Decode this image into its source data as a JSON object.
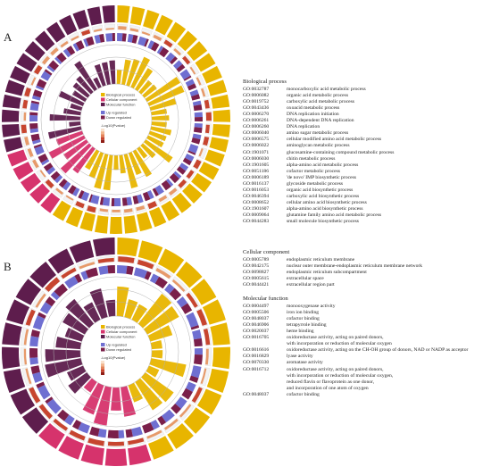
{
  "panels": [
    {
      "letter": "A",
      "chart_data": {
        "type": "circular",
        "legend": {
          "categories": [
            {
              "label": "Biological process",
              "color": "#e8b500"
            },
            {
              "label": "Cellular component",
              "color": "#d6336c"
            },
            {
              "label": "Molecular function",
              "color": "#5e1d4d"
            }
          ],
          "regulation": [
            {
              "label": "Up regulated",
              "color": "#6f6fd1"
            },
            {
              "label": "Down regulated",
              "color": "#7a1f4a"
            }
          ],
          "gradient_label": "-Log10(Pvalue)"
        },
        "sectors": [
          {
            "category": "Biological process",
            "count": 28
          },
          {
            "category": "Cellular component",
            "count": 5
          },
          {
            "category": "Molecular function",
            "count": 14
          }
        ]
      }
    },
    {
      "letter": "B",
      "chart_data": {
        "type": "circular",
        "legend": {
          "categories": [
            {
              "label": "Biological process",
              "color": "#e8b500"
            },
            {
              "label": "Cellular component",
              "color": "#d6336c"
            },
            {
              "label": "Molecular function",
              "color": "#5e1d4d"
            }
          ],
          "regulation": [
            {
              "label": "Up regulated",
              "color": "#6f6fd1"
            },
            {
              "label": "Down regulated",
              "color": "#7a1f4a"
            }
          ],
          "gradient_label": "-Log10(Pvalue)"
        },
        "sectors": [
          {
            "category": "Biological process",
            "count": 13
          },
          {
            "category": "Cellular component",
            "count": 5
          },
          {
            "category": "Molecular function",
            "count": 11
          }
        ]
      }
    }
  ],
  "lists": [
    {
      "heading": "Biological process",
      "items": [
        {
          "id": "GO:0032787",
          "term": "monocarboxylic acid metabolic process"
        },
        {
          "id": "GO:0006082",
          "term": "organic acid metabolic process"
        },
        {
          "id": "GO:0019752",
          "term": "carboxylic acid metabolic process"
        },
        {
          "id": "GO:0043436",
          "term": "oxoacid metabolic process"
        },
        {
          "id": "GO:0006270",
          "term": "DNA replication initiation"
        },
        {
          "id": "GO:0006261",
          "term": "DNA-dependent DNA replication"
        },
        {
          "id": "GO:0006260",
          "term": "DNA replication"
        },
        {
          "id": "GO:0006040",
          "term": "amino sugar metabolic process"
        },
        {
          "id": "GO:0006575",
          "term": "cellular modified amino acid metabolic process"
        },
        {
          "id": "GO:0006022",
          "term": "aminoglycan metabolic process"
        },
        {
          "id": "GO:1901071",
          "term": "glucosamine-containing compound metabolic process"
        },
        {
          "id": "GO:0006030",
          "term": "chitin metabolic process"
        },
        {
          "id": "GO:1901605",
          "term": "alpha-amino acid metabolic process"
        },
        {
          "id": "GO:0051186",
          "term": "cofactor metabolic process"
        },
        {
          "id": "GO:0006189",
          "term": "'de novo' IMP biosynthetic process"
        },
        {
          "id": "GO:0016137",
          "term": "glycoside metabolic process"
        },
        {
          "id": "GO:0016053",
          "term": "organic acid biosynthetic process"
        },
        {
          "id": "GO:0046394",
          "term": "carboxylic acid biosynthetic process"
        },
        {
          "id": "GO:0008652",
          "term": "cellular amino acid biosynthetic process"
        },
        {
          "id": "GO:1901607",
          "term": "alpha-amino acid biosynthetic process"
        },
        {
          "id": "GO:0009064",
          "term": "glutamine family amino acid metabolic process"
        },
        {
          "id": "GO:0044283",
          "term": "small molecule biosynthetic process"
        }
      ]
    },
    {
      "heading": "Cellular component",
      "items": [
        {
          "id": "GO:0005789",
          "term": "endoplasmic reticulum membrane"
        },
        {
          "id": "GO:0042175",
          "term": "nuclear outer membrane-endoplasmic reticulum membrane network"
        },
        {
          "id": "GO:0098827",
          "term": "endoplasmic reticulum subcompartment"
        },
        {
          "id": "GO:0005615",
          "term": "extracellular space"
        },
        {
          "id": "GO:0044421",
          "term": "extracellular region part"
        }
      ]
    },
    {
      "heading": "Molecular function",
      "items": [
        {
          "id": "GO:0004497",
          "term": "monooxygenase activity"
        },
        {
          "id": "GO:0005506",
          "term": "iron ion binding"
        },
        {
          "id": "GO:0048037",
          "term": "cofactor binding"
        },
        {
          "id": "GO:0046906",
          "term": "tetrapyrrole binding"
        },
        {
          "id": "GO:0020037",
          "term": "heme binding"
        },
        {
          "id": "GO:0016705",
          "term": "oxidoreductase activity, acting on paired donors,"
        },
        {
          "id": "",
          "term": "with incorporation or reduction of molecular oxygen"
        },
        {
          "id": "GO:0016616",
          "term": "oxidoreductase activity, acting on the CH-OH group of donors, NAD or NADP as acceptor"
        },
        {
          "id": "GO:0016829",
          "term": "lyase activity"
        },
        {
          "id": "GO:0070330",
          "term": "aromatase activity"
        },
        {
          "id": "GO:0016712",
          "term": "oxidoreductase activity, acting on paired donors,"
        },
        {
          "id": "",
          "term": "with incorporation or reduction of molecular oxygen,"
        },
        {
          "id": "",
          "term": "reduced flavin or flavoprotein as one donor,"
        },
        {
          "id": "",
          "term": "and incorporation of one atom of oxygen"
        },
        {
          "id": "GO:0048037",
          "term": "cofactor binding"
        }
      ]
    }
  ]
}
